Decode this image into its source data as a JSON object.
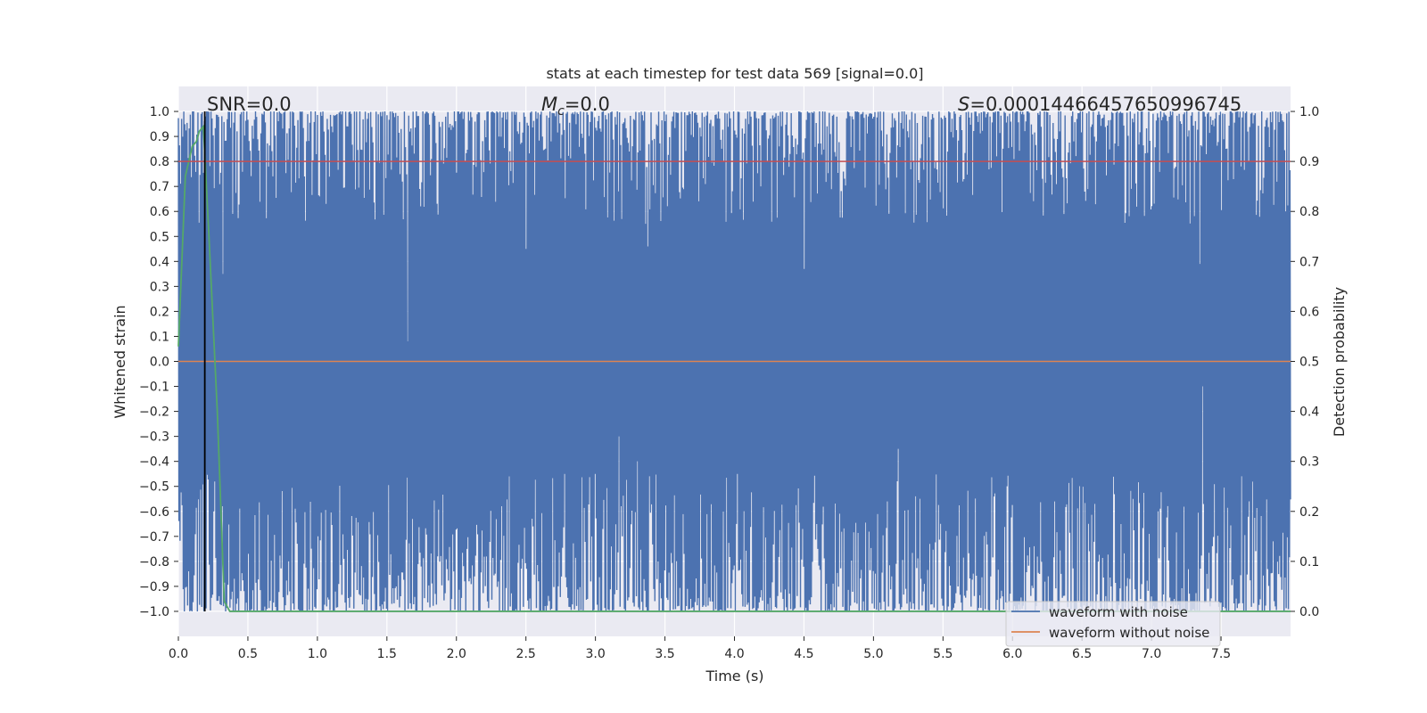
{
  "colors": {
    "axes_bg": "#eaeaf2",
    "grid": "#ffffff",
    "noisy": "#4c72b0",
    "clean": "#dd8452",
    "prob": "#55a868",
    "threshold": "#c44e52",
    "marker": "#000000"
  },
  "chart_data": {
    "type": "line",
    "title": "stats at each timestep for test data 569 [signal=0.0]",
    "xlabel": "Time (s)",
    "ylabel_left": "Whitened strain",
    "ylabel_right": "Detection probability",
    "xlim": [
      0.0,
      8.0
    ],
    "ylim_left": [
      -1.1,
      1.1
    ],
    "ylim_right": [
      -0.05,
      1.05
    ],
    "xticks": [
      "0.0",
      "0.5",
      "1.0",
      "1.5",
      "2.0",
      "2.5",
      "3.0",
      "3.5",
      "4.0",
      "4.5",
      "5.0",
      "5.5",
      "6.0",
      "6.5",
      "7.0",
      "7.5"
    ],
    "yticks_left": [
      "1.0",
      "0.9",
      "0.8",
      "0.7",
      "0.6",
      "0.5",
      "0.4",
      "0.3",
      "0.2",
      "0.1",
      "0.0",
      "−0.1",
      "−0.2",
      "−0.3",
      "−0.4",
      "−0.5",
      "−0.6",
      "−0.7",
      "−0.8",
      "−0.9",
      "−1.0"
    ],
    "yticks_right": [
      "1.0",
      "0.9",
      "0.8",
      "0.7",
      "0.6",
      "0.5",
      "0.4",
      "0.3",
      "0.2",
      "0.1",
      "0.0"
    ],
    "grid": true,
    "annotations": {
      "snr": "SNR=0.0",
      "mc_symbol": "M",
      "mc_sub": "c",
      "mc_value": "=0.0",
      "s_symbol": "S",
      "s_value": "=0.00014466457650996745"
    },
    "legend": {
      "placement": "lower-right",
      "entries": [
        "waveform with noise",
        "waveform without noise"
      ]
    },
    "series": [
      {
        "name": "waveform with noise",
        "axis": "left",
        "description_values": {
          "min": -1.0,
          "max": 1.0,
          "sample_count": 2048
        }
      },
      {
        "name": "waveform without noise",
        "axis": "left",
        "x": [
          0.0,
          8.0
        ],
        "y": [
          0.0,
          0.0
        ]
      },
      {
        "axis": "right",
        "x": [
          0.0,
          0.05,
          0.1,
          0.13,
          0.15,
          0.18,
          0.22,
          0.28,
          0.33,
          0.37,
          8.0
        ],
        "y": [
          0.53,
          0.87,
          0.93,
          0.94,
          0.96,
          0.97,
          0.75,
          0.4,
          0.02,
          0.0,
          0.0
        ]
      },
      {
        "axis": "right",
        "x": [
          0.0,
          8.0
        ],
        "y": [
          0.9,
          0.9
        ]
      }
    ],
    "marker_line_x": 0.19,
    "noisy_notable_spikes": [
      {
        "x": 0.32,
        "y": 0.35,
        "dir": "down"
      },
      {
        "x": 1.65,
        "y": 0.08,
        "dir": "down"
      },
      {
        "x": 2.5,
        "y": 0.45,
        "dir": "down"
      },
      {
        "x": 3.38,
        "y": 0.46,
        "dir": "down"
      },
      {
        "x": 4.5,
        "y": 0.37,
        "dir": "down"
      },
      {
        "x": 7.35,
        "y": 0.39,
        "dir": "down"
      },
      {
        "x": 3.17,
        "y": -0.3,
        "dir": "up"
      },
      {
        "x": 5.18,
        "y": -0.35,
        "dir": "up"
      },
      {
        "x": 7.37,
        "y": -0.1,
        "dir": "up"
      },
      {
        "x": 3.0,
        "y": -0.45,
        "dir": "up"
      },
      {
        "x": 3.3,
        "y": -0.4,
        "dir": "up"
      },
      {
        "x": 4.02,
        "y": -0.45,
        "dir": "up"
      }
    ]
  }
}
